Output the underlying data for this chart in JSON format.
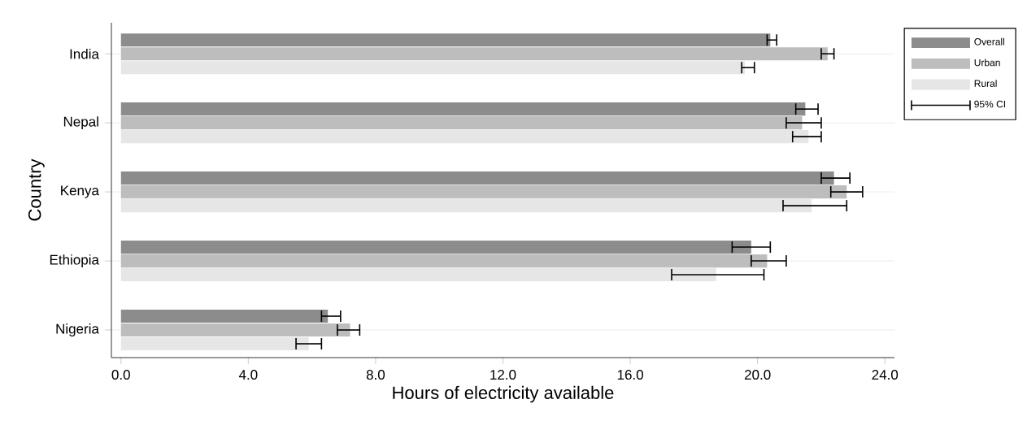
{
  "chart_data": {
    "type": "bar",
    "orientation": "horizontal",
    "xlabel": "Hours of electricity available",
    "ylabel": "Country",
    "categories": [
      "India",
      "Nepal",
      "Kenya",
      "Ethiopia",
      "Nigeria"
    ],
    "series": [
      {
        "name": "Overall",
        "color": "#8c8c8c",
        "values": [
          20.4,
          21.5,
          22.4,
          19.8,
          6.5
        ],
        "errors": [
          [
            20.3,
            20.6
          ],
          [
            21.2,
            21.9
          ],
          [
            22.0,
            22.9
          ],
          [
            19.2,
            20.4
          ],
          [
            6.3,
            6.9
          ]
        ]
      },
      {
        "name": "Urban",
        "color": "#bdbdbd",
        "values": [
          22.2,
          21.4,
          22.8,
          20.3,
          7.2
        ],
        "errors": [
          [
            22.0,
            22.4
          ],
          [
            20.9,
            22.0
          ],
          [
            22.3,
            23.3
          ],
          [
            19.8,
            20.9
          ],
          [
            6.8,
            7.5
          ]
        ]
      },
      {
        "name": "Rural",
        "color": "#e6e6e6",
        "values": [
          19.6,
          21.6,
          21.7,
          18.7,
          5.9
        ],
        "errors": [
          [
            19.5,
            19.9
          ],
          [
            21.1,
            22.0
          ],
          [
            20.8,
            22.8
          ],
          [
            17.3,
            20.2
          ],
          [
            5.5,
            6.3
          ]
        ]
      }
    ],
    "xlim": [
      -0.3,
      24.3
    ],
    "xticks": [
      {
        "value": 0,
        "label": "0.0"
      },
      {
        "value": 4,
        "label": "4.0"
      },
      {
        "value": 8,
        "label": "8.0"
      },
      {
        "value": 12,
        "label": "12.0"
      },
      {
        "value": 16,
        "label": "16.0"
      },
      {
        "value": 20,
        "label": "20.0"
      },
      {
        "value": 24,
        "label": "24.0"
      }
    ],
    "grid": "y",
    "legend": "top right",
    "annotations": [
      "95% CI"
    ]
  }
}
